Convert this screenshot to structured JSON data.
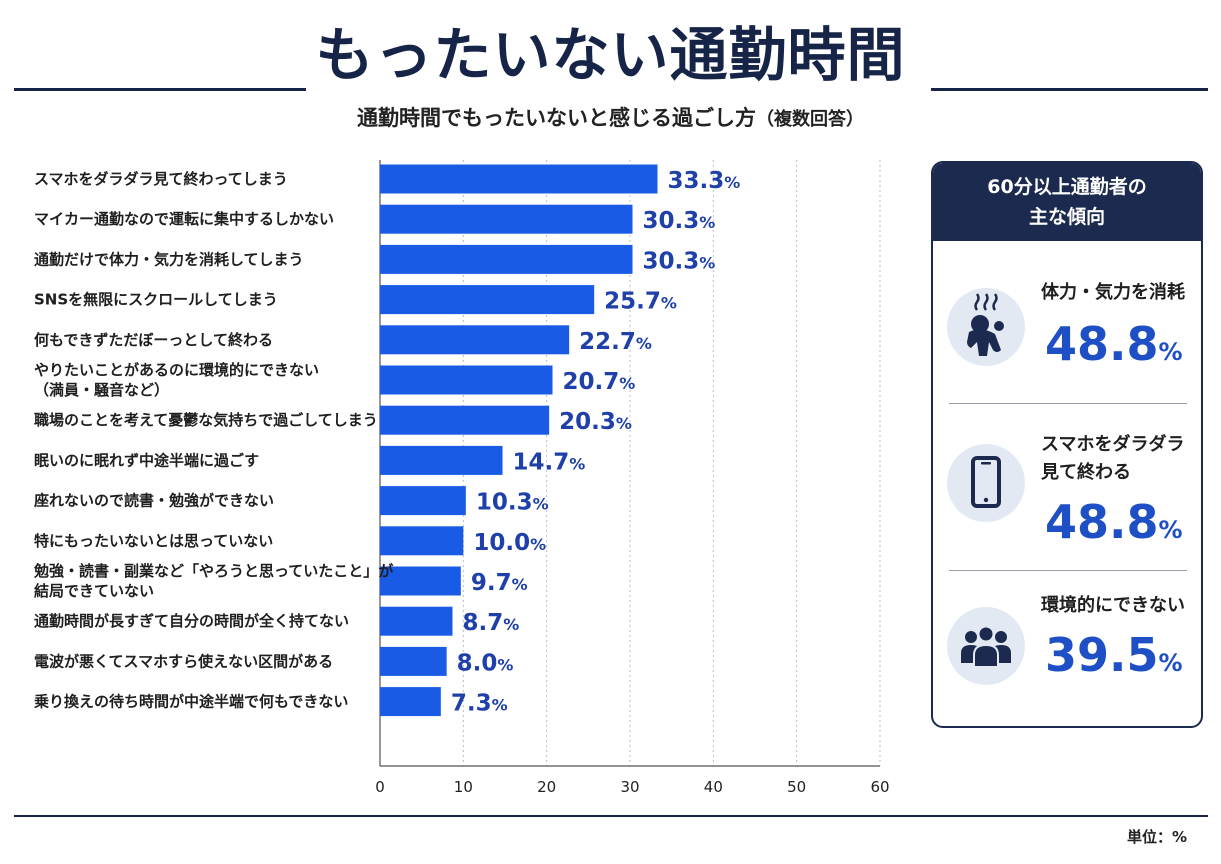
{
  "title": "もったいない通勤時間",
  "subtitle_main": "通勤時間でもったいないと感じる過ごし方",
  "subtitle_paren": "（複数回答）",
  "unit_label": "単位：%",
  "colors": {
    "bar": "#1a5be6",
    "navy": "#1b2a4e",
    "value_text": "#1e40a8"
  },
  "chart_data": {
    "type": "bar",
    "orientation": "horizontal",
    "categories": [
      "スマホをダラダラ見て終わってしまう",
      "マイカー通勤なので運転に集中するしかない",
      "通勤だけで体力・気力を消耗してしまう",
      "SNSを無限にスクロールしてしまう",
      "何もできずただぼーっとして終わる",
      "やりたいことがあるのに環境的にできない\n（満員・騒音など）",
      "職場のことを考えて憂鬱な気持ちで過ごしてしまう",
      "眠いのに眠れず中途半端に過ごす",
      "座れないので読書・勉強ができない",
      "特にもったいないとは思っていない",
      "勉強・読書・副業など「やろうと思っていたこと」が\n結局できていない",
      "通勤時間が長すぎて自分の時間が全く持てない",
      "電波が悪くてスマホすら使えない区間がある",
      "乗り換えの待ち時間が中途半端で何もできない"
    ],
    "values": [
      33.3,
      30.3,
      30.3,
      25.7,
      22.7,
      20.7,
      20.3,
      14.7,
      10.3,
      10.0,
      9.7,
      8.7,
      8.0,
      7.3
    ],
    "value_labels": [
      "33.3",
      "30.3",
      "30.3",
      "25.7",
      "22.7",
      "20.7",
      "20.3",
      "14.7",
      "10.3",
      "10.0",
      "9.7",
      "8.7",
      "8.0",
      "7.3"
    ],
    "value_suffix": "%",
    "xlim": [
      0,
      60
    ],
    "xticks": [
      0,
      10,
      20,
      30,
      40,
      50,
      60
    ],
    "grid": "vertical dotted"
  },
  "panel": {
    "title_line1": "60分以上通勤者の",
    "title_line2": "主な傾向",
    "items": [
      {
        "icon": "exhausted-person-icon",
        "label_lines": [
          "体力・気力を消耗"
        ],
        "value": "48.8",
        "suffix": "%"
      },
      {
        "icon": "smartphone-icon",
        "label_lines": [
          "スマホをダラダラ",
          "見て終わる"
        ],
        "value": "48.8",
        "suffix": "%"
      },
      {
        "icon": "crowd-icon",
        "label_lines": [
          "環境的にできない"
        ],
        "value": "39.5",
        "suffix": "%"
      }
    ]
  }
}
